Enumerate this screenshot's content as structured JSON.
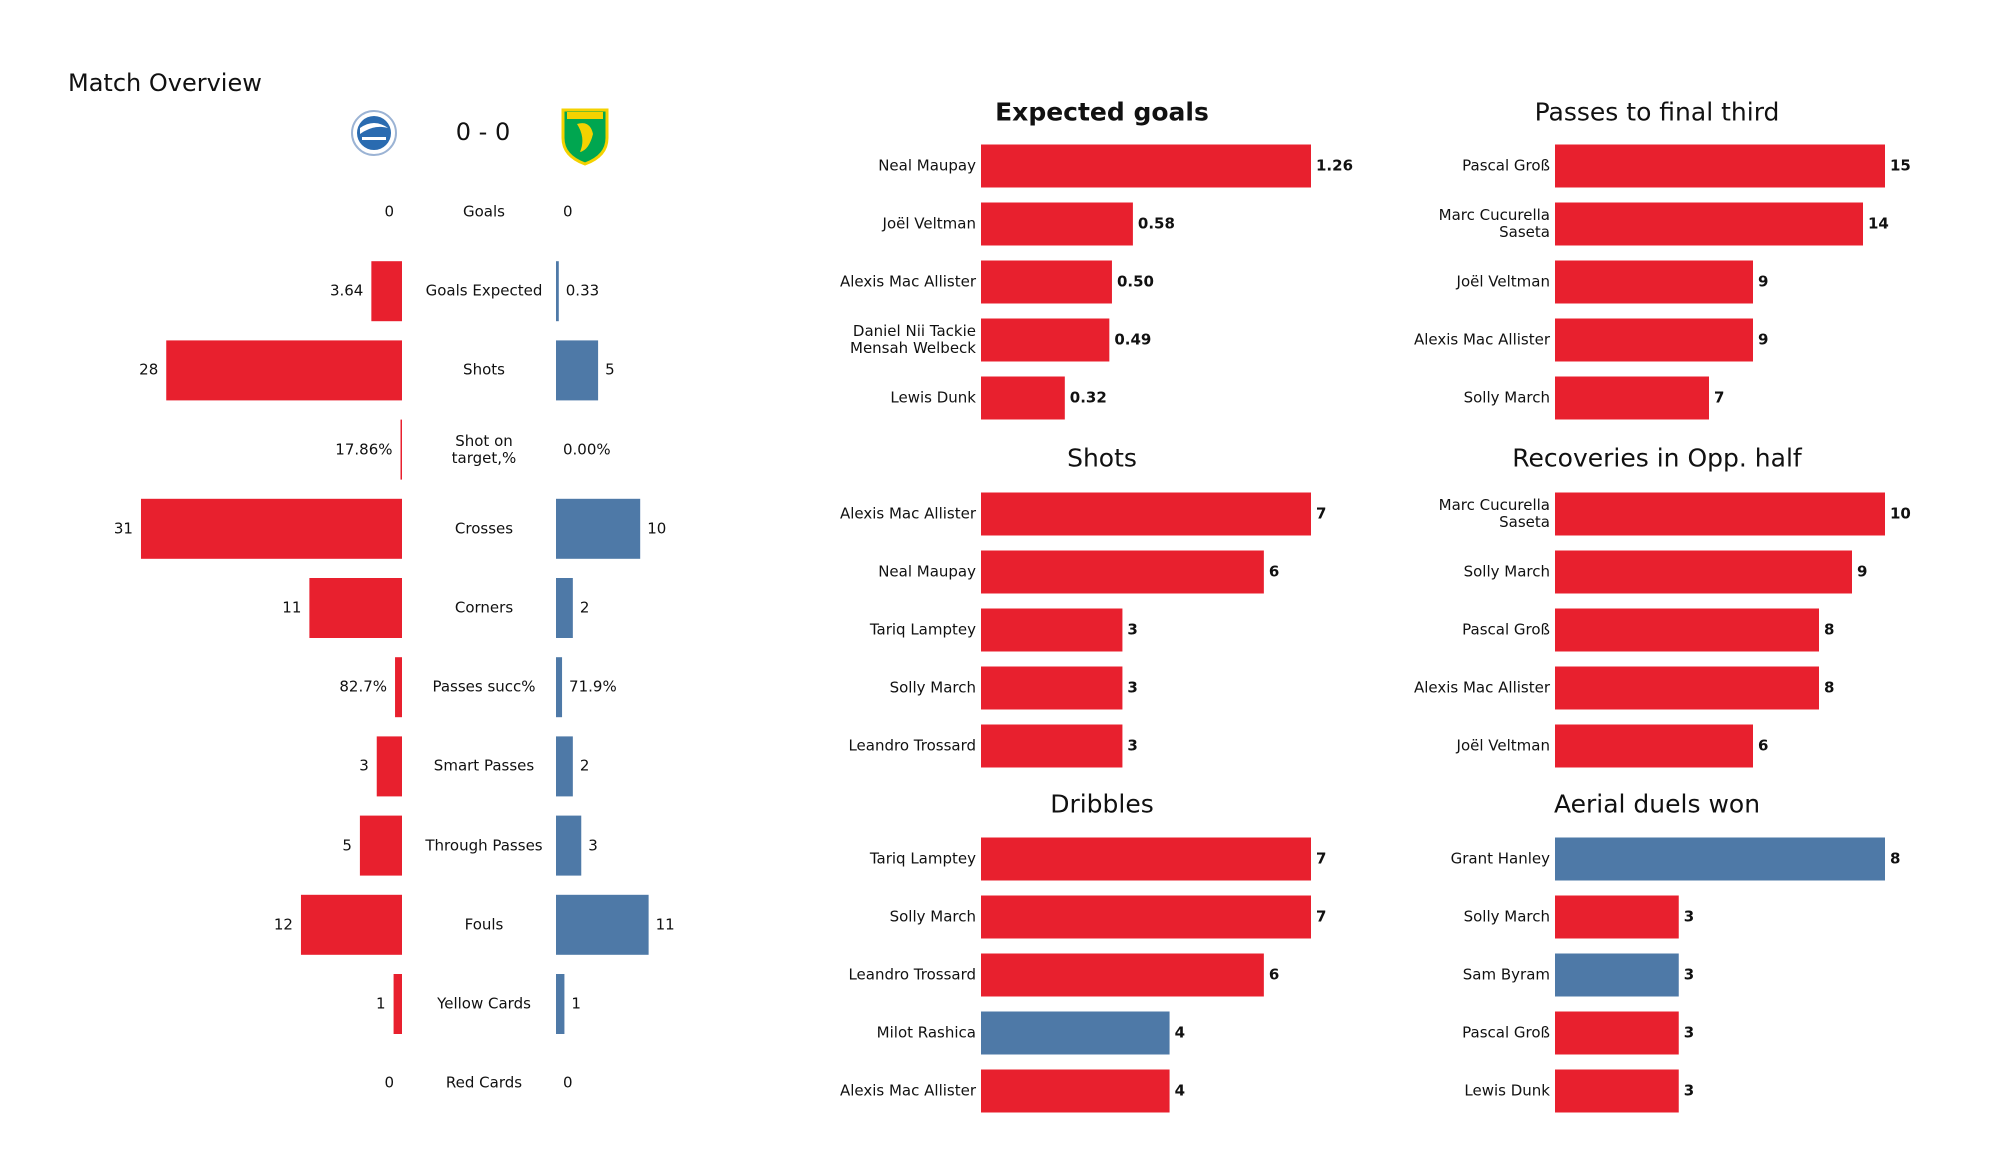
{
  "title": "Match Overview",
  "score": "0 - 0",
  "chart_data": [
    {
      "type": "butterfly",
      "categories": [
        "Goals",
        "Goals Expected",
        "Shots",
        "Shot on\ntarget,%",
        "Crosses",
        "Corners",
        "Passes succ%",
        "Smart Passes",
        "Through Passes",
        "Fouls",
        "Yellow Cards",
        "Red Cards"
      ],
      "series": [
        {
          "color": "#e8202e",
          "values": [
            0,
            3.64,
            28,
            0.1786,
            31,
            11,
            0.827,
            3,
            5,
            12,
            1,
            0
          ],
          "value_labels": [
            "0",
            "3.64",
            "28",
            "17.86%",
            "31",
            "11",
            "82.7%",
            "3",
            "5",
            "12",
            "1",
            "0"
          ]
        },
        {
          "color": "#4e79a7",
          "values": [
            0,
            0.33,
            5,
            0,
            10,
            2,
            0.719,
            2,
            3,
            11,
            1,
            0
          ],
          "value_labels": [
            "0",
            "0.33",
            "5",
            "0.00%",
            "10",
            "2",
            "71.9%",
            "2",
            "3",
            "11",
            "1",
            "0"
          ]
        }
      ]
    },
    {
      "type": "hbar",
      "title": "Expected goals",
      "categories": [
        "Neal Maupay",
        "Joël Veltman",
        "Alexis Mac Allister",
        "Daniel Nii Tackie\nMensah Welbeck",
        "Lewis Dunk"
      ],
      "values": [
        1.26,
        0.58,
        0.5,
        0.49,
        0.32
      ],
      "value_labels": [
        "1.26",
        "0.58",
        "0.50",
        "0.49",
        "0.32"
      ],
      "colors": [
        "#e8202e",
        "#e8202e",
        "#e8202e",
        "#e8202e",
        "#e8202e"
      ]
    },
    {
      "type": "hbar",
      "title": "Passes to final third",
      "categories": [
        "Pascal Groß",
        "Marc Cucurella\nSaseta",
        "Joël Veltman",
        "Alexis Mac Allister",
        "Solly March"
      ],
      "values": [
        15,
        14,
        9,
        9,
        7
      ],
      "colors": [
        "#e8202e",
        "#e8202e",
        "#e8202e",
        "#e8202e",
        "#e8202e"
      ]
    },
    {
      "type": "hbar",
      "title": "Shots",
      "categories": [
        "Alexis Mac Allister",
        "Neal Maupay",
        "Tariq Lamptey",
        "Solly March",
        "Leandro Trossard"
      ],
      "values": [
        7,
        6,
        3,
        3,
        3
      ],
      "colors": [
        "#e8202e",
        "#e8202e",
        "#e8202e",
        "#e8202e",
        "#e8202e"
      ]
    },
    {
      "type": "hbar",
      "title": "Recoveries in Opp. half",
      "categories": [
        "Marc Cucurella\nSaseta",
        "Solly March",
        "Pascal Groß",
        "Alexis Mac Allister",
        "Joël Veltman"
      ],
      "values": [
        10,
        9,
        8,
        8,
        6
      ],
      "colors": [
        "#e8202e",
        "#e8202e",
        "#e8202e",
        "#e8202e",
        "#e8202e"
      ]
    },
    {
      "type": "hbar",
      "title": "Dribbles",
      "categories": [
        "Tariq Lamptey",
        "Solly March",
        "Leandro Trossard",
        "Milot Rashica",
        "Alexis Mac Allister"
      ],
      "values": [
        7,
        7,
        6,
        4,
        4
      ],
      "colors": [
        "#e8202e",
        "#e8202e",
        "#e8202e",
        "#4e79a7",
        "#e8202e"
      ]
    },
    {
      "type": "hbar",
      "title": "Aerial duels won",
      "categories": [
        "Grant Hanley",
        "Solly March",
        "Sam Byram",
        "Pascal Groß",
        "Lewis Dunk"
      ],
      "values": [
        8,
        3,
        3,
        3,
        3
      ],
      "colors": [
        "#4e79a7",
        "#e8202e",
        "#4e79a7",
        "#e8202e",
        "#e8202e"
      ]
    }
  ]
}
